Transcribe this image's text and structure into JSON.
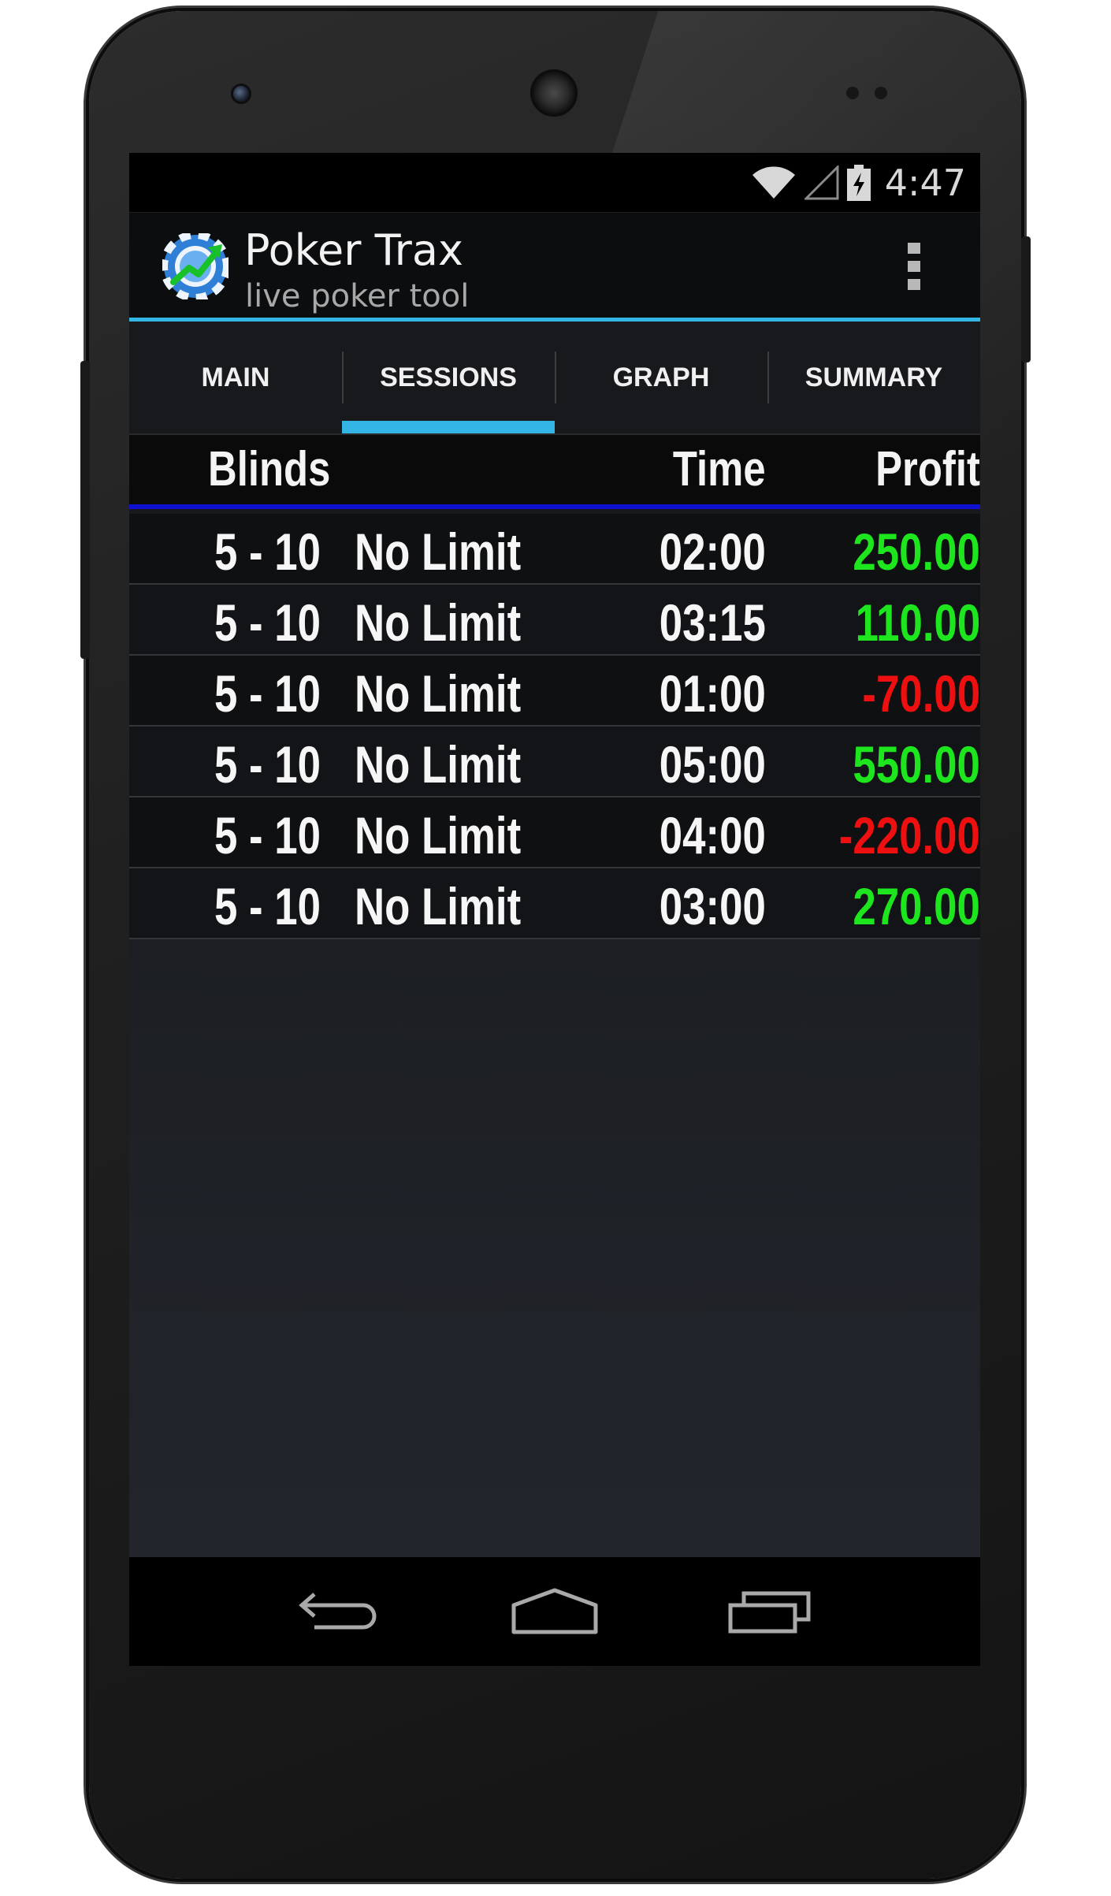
{
  "status_bar": {
    "time": "4:47",
    "icons": [
      "wifi-icon",
      "signal-icon",
      "battery-charging-icon"
    ]
  },
  "app": {
    "title": "Poker Trax",
    "subtitle": "live poker tool",
    "icon": "poker-chip-chart-icon"
  },
  "tabs": [
    {
      "label": "MAIN",
      "active": false
    },
    {
      "label": "SESSIONS",
      "active": true
    },
    {
      "label": "GRAPH",
      "active": false
    },
    {
      "label": "SUMMARY",
      "active": false
    }
  ],
  "table": {
    "headers": {
      "blinds": "Blinds",
      "time": "Time",
      "profit": "Profit"
    },
    "rows": [
      {
        "blinds": "5 - 10",
        "game": "No Limit",
        "time": "02:00",
        "profit": "250.00",
        "sign": "pos"
      },
      {
        "blinds": "5 - 10",
        "game": "No Limit",
        "time": "03:15",
        "profit": "110.00",
        "sign": "pos"
      },
      {
        "blinds": "5 - 10",
        "game": "No Limit",
        "time": "01:00",
        "profit": "-70.00",
        "sign": "neg"
      },
      {
        "blinds": "5 - 10",
        "game": "No Limit",
        "time": "05:00",
        "profit": "550.00",
        "sign": "pos"
      },
      {
        "blinds": "5 - 10",
        "game": "No Limit",
        "time": "04:00",
        "profit": "-220.00",
        "sign": "neg"
      },
      {
        "blinds": "5 - 10",
        "game": "No Limit",
        "time": "03:00",
        "profit": "270.00",
        "sign": "pos"
      }
    ]
  },
  "nav_bar": {
    "buttons": [
      "back-icon",
      "home-icon",
      "recent-apps-icon"
    ]
  },
  "colors": {
    "accent": "#33b5e5",
    "header_rule": "#1010d0",
    "positive": "#1ee61e",
    "negative": "#ee1010"
  }
}
